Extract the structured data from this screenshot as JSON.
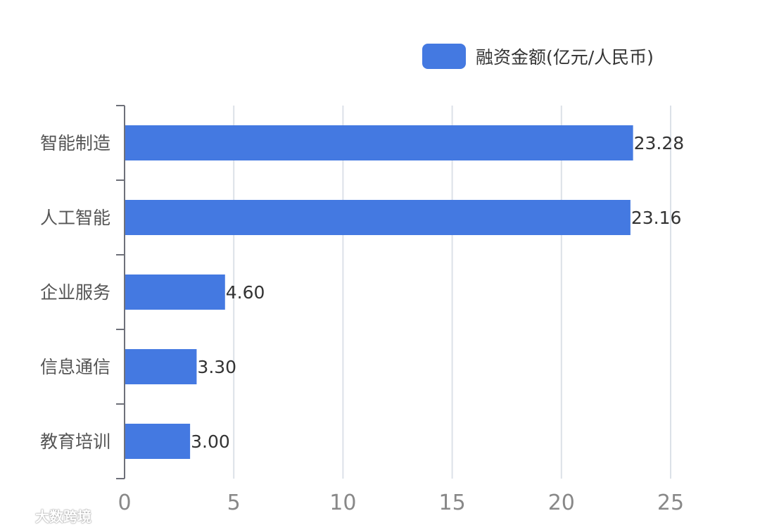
{
  "chart_data": {
    "type": "bar",
    "orientation": "horizontal",
    "categories": [
      "智能制造",
      "人工智能",
      "企业服务",
      "信息通信",
      "教育培训"
    ],
    "series": [
      {
        "name": "融资金额(亿元/人民币)",
        "values": [
          23.28,
          23.16,
          4.6,
          3.3,
          3.0
        ],
        "value_labels": [
          "23.28",
          "23.16",
          "4.60",
          "3.30",
          "3.00"
        ],
        "color": "#4479E1"
      }
    ],
    "xlim": [
      0,
      25
    ],
    "xticks": [
      "0",
      "5",
      "10",
      "15",
      "20",
      "25"
    ],
    "grid": true,
    "legend_position": "top-right"
  },
  "watermark": {
    "text": "大数跨境"
  }
}
